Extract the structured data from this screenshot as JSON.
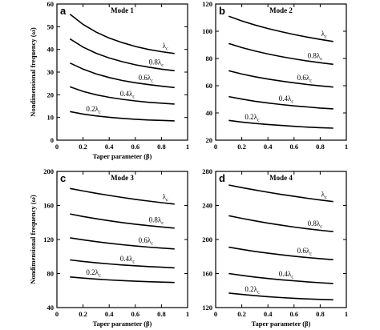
{
  "chart_data": [
    {
      "panel_letter": "a",
      "title": "Mode 1",
      "type": "line",
      "xlabel": "Taper parameter (β)",
      "ylabel": "Nondimensional frequency (ω̄)",
      "xlim": [
        0,
        1
      ],
      "ylim": [
        0,
        60
      ],
      "xticks": [
        "0",
        "0.2",
        "0.4",
        "0.6",
        "0.8",
        "1"
      ],
      "yticks": [
        "0",
        "10",
        "20",
        "30",
        "40",
        "50",
        "60"
      ],
      "x": [
        0.1,
        0.2,
        0.3,
        0.4,
        0.5,
        0.6,
        0.7,
        0.8,
        0.9
      ],
      "series": [
        {
          "name": "λc",
          "label_prefix": "",
          "values": [
            55.5,
            51.0,
            47.6,
            45.0,
            43.0,
            41.3,
            40.0,
            39.0,
            38.2
          ]
        },
        {
          "name": "0.8λc",
          "label_prefix": "0.8",
          "values": [
            44.6,
            41.0,
            38.3,
            36.2,
            34.6,
            33.2,
            32.2,
            31.3,
            30.6
          ]
        },
        {
          "name": "0.6λc",
          "label_prefix": "0.6",
          "values": [
            34.0,
            31.3,
            29.2,
            27.6,
            26.3,
            25.3,
            24.5,
            23.8,
            23.2
          ]
        },
        {
          "name": "0.4λc",
          "label_prefix": "0.4",
          "values": [
            23.5,
            21.5,
            20.0,
            18.9,
            18.0,
            17.3,
            16.7,
            16.3,
            15.9
          ]
        },
        {
          "name": "0.2λc",
          "label_prefix": "0.2",
          "values": [
            12.6,
            11.5,
            10.7,
            10.1,
            9.6,
            9.2,
            8.9,
            8.7,
            8.5
          ]
        }
      ]
    },
    {
      "panel_letter": "b",
      "title": "Mode 2",
      "type": "line",
      "xlabel": "",
      "ylabel": "",
      "xlim": [
        0,
        1
      ],
      "ylim": [
        20,
        120
      ],
      "xticks": [
        "0",
        "0.2",
        "0.4",
        "0.6",
        "0.8",
        "1"
      ],
      "yticks": [
        "20",
        "40",
        "60",
        "80",
        "100",
        "120"
      ],
      "x": [
        0.1,
        0.2,
        0.3,
        0.4,
        0.5,
        0.6,
        0.7,
        0.8,
        0.9
      ],
      "series": [
        {
          "name": "λc",
          "label_prefix": "",
          "values": [
            111.0,
            107.6,
            104.6,
            102.0,
            99.7,
            97.6,
            95.7,
            94.0,
            92.5
          ]
        },
        {
          "name": "0.8λc",
          "label_prefix": "0.8",
          "values": [
            91.0,
            88.0,
            85.5,
            83.3,
            81.4,
            79.7,
            78.2,
            76.9,
            75.7
          ]
        },
        {
          "name": "0.6λc",
          "label_prefix": "0.6",
          "values": [
            71.0,
            68.6,
            66.6,
            64.9,
            63.4,
            62.1,
            60.9,
            59.9,
            59.0
          ]
        },
        {
          "name": "0.4λc",
          "label_prefix": "0.4",
          "values": [
            52.0,
            50.2,
            48.6,
            47.3,
            46.2,
            45.2,
            44.4,
            43.6,
            43.0
          ]
        },
        {
          "name": "0.2λc",
          "label_prefix": "0.2",
          "values": [
            34.5,
            33.3,
            32.3,
            31.5,
            30.8,
            30.2,
            29.6,
            29.2,
            28.8
          ]
        }
      ]
    },
    {
      "panel_letter": "c",
      "title": "Mode 3",
      "type": "line",
      "xlabel": "Taper parameter (β)",
      "ylabel": "Nondimensional frequency (ω̄)",
      "xlim": [
        0,
        1
      ],
      "ylim": [
        40,
        200
      ],
      "xticks": [
        "0",
        "0.2",
        "0.4",
        "0.6",
        "0.8",
        "1"
      ],
      "yticks": [
        "40",
        "80",
        "120",
        "160",
        "200"
      ],
      "x": [
        0.1,
        0.2,
        0.3,
        0.4,
        0.5,
        0.6,
        0.7,
        0.8,
        0.9
      ],
      "series": [
        {
          "name": "λc",
          "label_prefix": "",
          "values": [
            180.0,
            177.0,
            174.3,
            171.8,
            169.4,
            167.2,
            165.2,
            163.3,
            161.6
          ]
        },
        {
          "name": "0.8λc",
          "label_prefix": "0.8",
          "values": [
            150.0,
            147.0,
            144.4,
            142.0,
            139.9,
            138.0,
            136.3,
            134.8,
            133.4
          ]
        },
        {
          "name": "0.6λc",
          "label_prefix": "0.6",
          "values": [
            122.0,
            119.6,
            117.5,
            115.6,
            113.9,
            112.4,
            111.1,
            109.9,
            108.9
          ]
        },
        {
          "name": "0.4λc",
          "label_prefix": "0.4",
          "values": [
            96.0,
            94.2,
            92.6,
            91.3,
            90.1,
            89.1,
            88.2,
            87.4,
            86.7
          ]
        },
        {
          "name": "0.2λc",
          "label_prefix": "0.2",
          "values": [
            76.0,
            74.6,
            73.5,
            72.5,
            71.7,
            71.0,
            70.4,
            69.9,
            69.5
          ]
        }
      ]
    },
    {
      "panel_letter": "d",
      "title": "Mode 4",
      "type": "line",
      "xlabel": "Taper parameter (β)",
      "ylabel": "",
      "xlim": [
        0,
        1
      ],
      "ylim": [
        120,
        280
      ],
      "xticks": [
        "0",
        "0.2",
        "0.4",
        "0.6",
        "0.8",
        "1"
      ],
      "yticks": [
        "120",
        "160",
        "200",
        "240",
        "280"
      ],
      "x": [
        0.1,
        0.2,
        0.3,
        0.4,
        0.5,
        0.6,
        0.7,
        0.8,
        0.9
      ],
      "series": [
        {
          "name": "λc",
          "label_prefix": "",
          "values": [
            264.0,
            261.0,
            258.2,
            255.5,
            253.0,
            250.7,
            248.5,
            246.4,
            244.5
          ]
        },
        {
          "name": "0.8λc",
          "label_prefix": "0.8",
          "values": [
            228.0,
            224.8,
            221.9,
            219.2,
            216.8,
            214.6,
            212.6,
            210.8,
            209.2
          ]
        },
        {
          "name": "0.6λc",
          "label_prefix": "0.6",
          "values": [
            191.0,
            188.4,
            186.0,
            183.9,
            182.0,
            180.3,
            178.8,
            177.5,
            176.3
          ]
        },
        {
          "name": "0.4λc",
          "label_prefix": "0.4",
          "values": [
            160.0,
            157.8,
            155.9,
            154.2,
            152.7,
            151.4,
            150.2,
            149.2,
            148.3
          ]
        },
        {
          "name": "0.2λc",
          "label_prefix": "0.2",
          "values": [
            137.0,
            135.4,
            134.0,
            132.8,
            131.8,
            130.9,
            130.2,
            129.6,
            129.1
          ]
        }
      ]
    }
  ]
}
